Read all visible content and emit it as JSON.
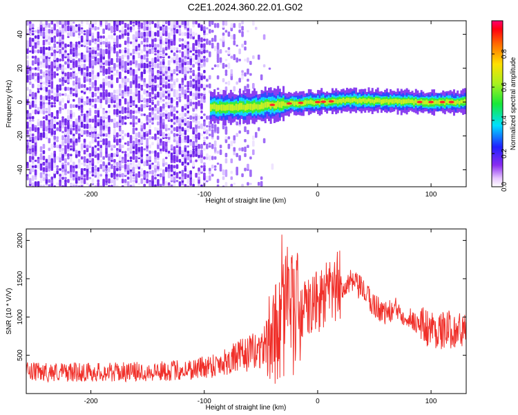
{
  "title": "C2E1.2024.360.22.01.G02",
  "colors": {
    "snr_line": "#f0302a",
    "ridge_core": "#ff2a2a",
    "noise_purple": "#7a2ef0",
    "ridge_green": "#38f030"
  },
  "chart_data": [
    {
      "type": "heatmap",
      "xlabel": "Height of straight line (km)",
      "ylabel": "Frequency (Hz)",
      "xlim": [
        -257,
        131
      ],
      "ylim": [
        -50,
        48
      ],
      "x_ticks": [
        -200,
        -100,
        0,
        100
      ],
      "y_ticks": [
        -40,
        -20,
        0,
        20,
        40
      ],
      "colorbar": {
        "label": "Normalized spectral amplitude",
        "range": [
          0,
          1
        ],
        "ticks": [
          0.0,
          0.2,
          0.4,
          0.6,
          0.8
        ],
        "colormap": "hsv-like (magenta→purple→blue→cyan→green→yellow→orange→red)"
      },
      "regions": [
        {
          "x_range": [
            -257,
            -100
          ],
          "description_value": "dense scattered low-amplitude noise across all frequencies",
          "amplitude": 0.2
        },
        {
          "x_range": [
            -100,
            -40
          ],
          "description_value": "sparse noise fading out",
          "amplitude": 0.1
        },
        {
          "x_range": [
            -95,
            131
          ],
          "description_value": "narrow band near 0 Hz",
          "amplitude": 0.9
        }
      ],
      "ridge": {
        "x": [
          -95,
          -60,
          -30,
          0,
          30,
          60,
          90,
          131
        ],
        "y": [
          -3,
          -3,
          -1,
          0,
          1,
          0.5,
          0,
          0
        ]
      },
      "grid": false
    },
    {
      "type": "line",
      "xlabel": "Height of straight line (km)",
      "ylabel": "SNR (10 * V/V)",
      "xlim": [
        -257,
        131
      ],
      "ylim": [
        0,
        2150
      ],
      "x_ticks": [
        -200,
        -100,
        0,
        100
      ],
      "y_ticks": [
        500,
        1000,
        1500,
        2000
      ],
      "series": [
        {
          "x": [
            -257,
            -220,
            -180,
            -140,
            -110,
            -90,
            -70,
            -50,
            -40,
            -30,
            -20,
            -10,
            0,
            10,
            20,
            30,
            40,
            50,
            60,
            70,
            80,
            90,
            100,
            110,
            120,
            131
          ],
          "y": [
            280,
            280,
            280,
            290,
            320,
            380,
            480,
            580,
            750,
            950,
            1000,
            1100,
            1200,
            1300,
            1400,
            1450,
            1350,
            1150,
            1050,
            1100,
            1000,
            900,
            850,
            820,
            850,
            800
          ]
        }
      ],
      "grid": false
    }
  ]
}
